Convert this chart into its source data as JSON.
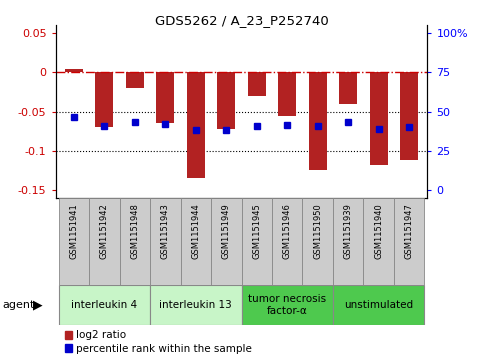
{
  "title": "GDS5262 / A_23_P252740",
  "samples": [
    "GSM1151941",
    "GSM1151942",
    "GSM1151948",
    "GSM1151943",
    "GSM1151944",
    "GSM1151949",
    "GSM1151945",
    "GSM1151946",
    "GSM1151950",
    "GSM1151939",
    "GSM1151940",
    "GSM1151947"
  ],
  "log2_ratio": [
    0.005,
    -0.07,
    -0.02,
    -0.065,
    -0.135,
    -0.072,
    -0.03,
    -0.055,
    -0.125,
    -0.04,
    -0.118,
    -0.112
  ],
  "percentile_rank_y": [
    -0.057,
    -0.068,
    -0.063,
    -0.066,
    -0.073,
    -0.073,
    -0.068,
    -0.067,
    -0.068,
    -0.063,
    -0.072,
    -0.07
  ],
  "ylim_left": [
    -0.16,
    0.06
  ],
  "ylim_right": [
    -5.0,
    105.0
  ],
  "yticks_left": [
    0.05,
    0.0,
    -0.05,
    -0.1,
    -0.15
  ],
  "yticks_left_labels": [
    "0.05",
    "0",
    "-0.05",
    "-0.1",
    "-0.15"
  ],
  "yticks_right": [
    100,
    75,
    50,
    25,
    0
  ],
  "yticks_right_labels": [
    "100%",
    "75",
    "50",
    "25",
    "0"
  ],
  "groups": [
    {
      "label": "interleukin 4",
      "start": 0,
      "end": 3,
      "color": "#c8f5c8"
    },
    {
      "label": "interleukin 13",
      "start": 3,
      "end": 6,
      "color": "#c8f5c8"
    },
    {
      "label": "tumor necrosis\nfactor-α",
      "start": 6,
      "end": 9,
      "color": "#4ec94e"
    },
    {
      "label": "unstimulated",
      "start": 9,
      "end": 12,
      "color": "#4ec94e"
    }
  ],
  "bar_color": "#b22222",
  "dot_color": "#0000cc",
  "zeroline_color": "#cc0000",
  "gridline_color": "#000000",
  "sample_box_color": "#cccccc",
  "sample_box_edge": "#888888",
  "legend_items": [
    "log2 ratio",
    "percentile rank within the sample"
  ],
  "agent_label": "agent",
  "agent_arrow": "▶"
}
